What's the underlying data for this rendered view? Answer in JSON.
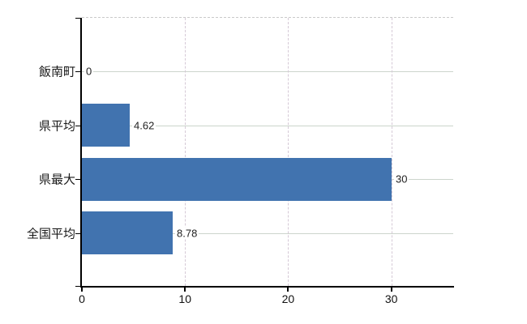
{
  "chart_data": {
    "type": "bar",
    "orientation": "horizontal",
    "title": "",
    "xlabel": "",
    "ylabel": "",
    "categories": [
      "飯南町",
      "県平均",
      "県最大",
      "全国平均"
    ],
    "values": [
      0,
      4.62,
      30,
      8.78
    ],
    "value_labels": [
      "0",
      "4.62",
      "30",
      "8.78"
    ],
    "x_ticks": [
      0,
      10,
      20,
      30
    ],
    "x_tick_labels": [
      "0",
      "10",
      "20",
      "30"
    ],
    "xlim": [
      0,
      36
    ],
    "grid": true,
    "legend": false,
    "colors": {
      "bar": "#4173AF",
      "axis": "#000000",
      "h_gridline": "#ccd5cc",
      "v_gridline": "#d5c9d6",
      "top_border": "#c9c9c9",
      "text": "#1a1a1a",
      "background": "#ffffff"
    }
  }
}
